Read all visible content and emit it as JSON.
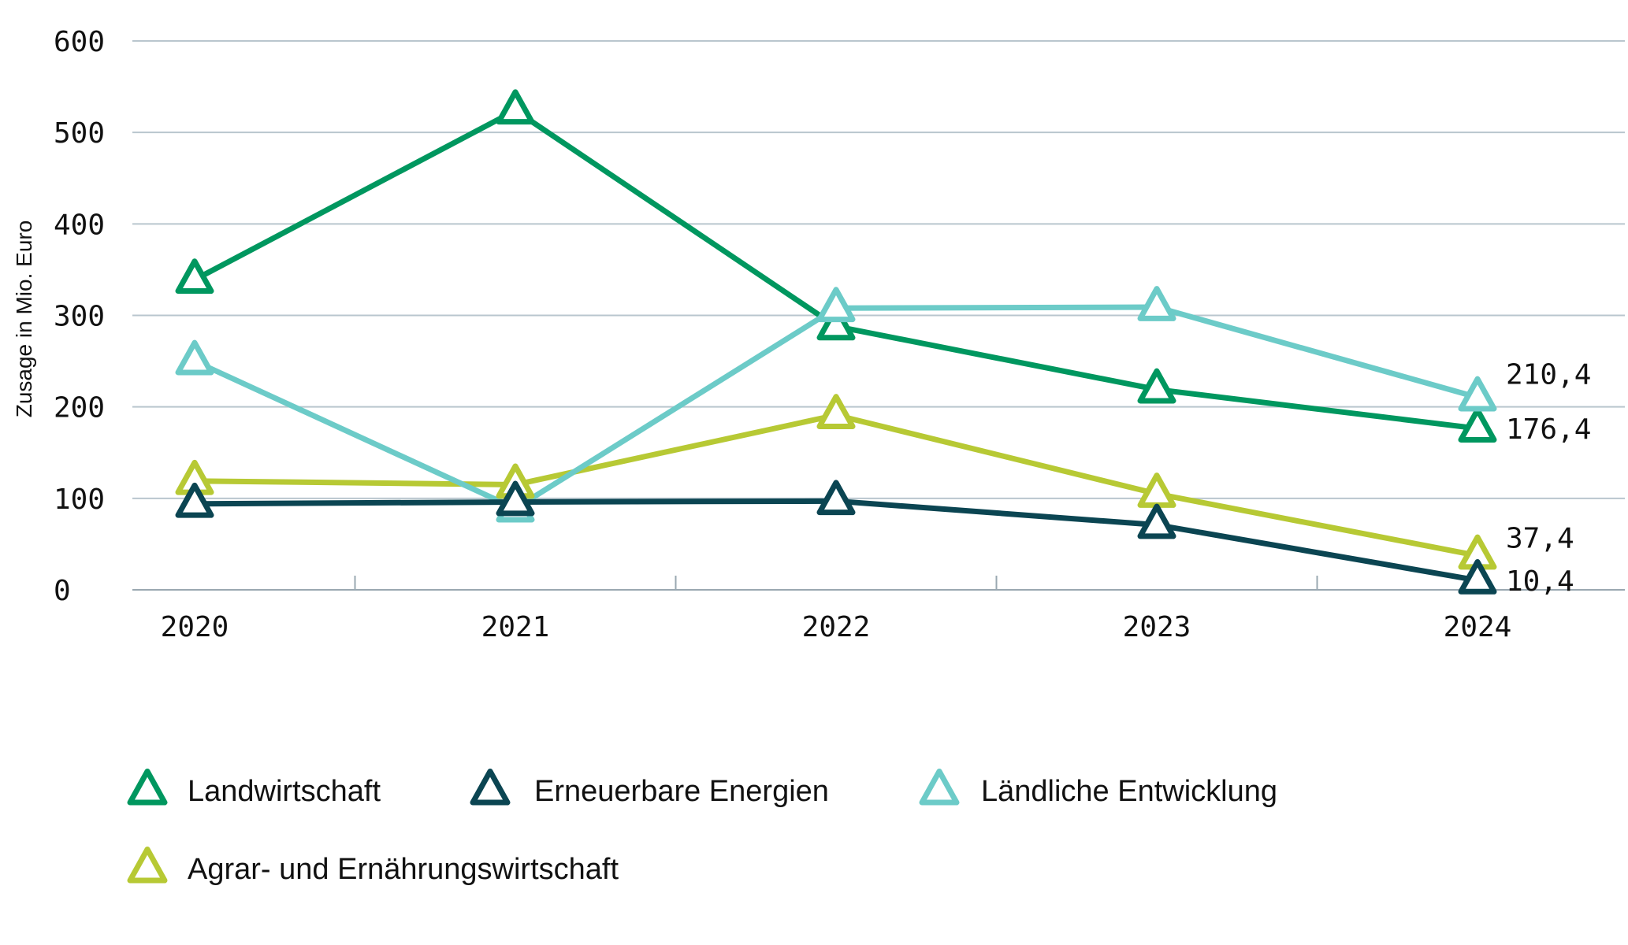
{
  "chart_data": {
    "type": "line",
    "ylabel": "Zusage in Mio. Euro",
    "xlabel": "",
    "title": "",
    "ylim": [
      0,
      600
    ],
    "yticks": [
      0,
      100,
      200,
      300,
      400,
      500,
      600
    ],
    "categories": [
      "2020",
      "2021",
      "2022",
      "2023",
      "2024"
    ],
    "grid": true,
    "legend_position": "bottom",
    "marker": "triangle-outline",
    "series": [
      {
        "name": "Landwirtschaft",
        "color": "#00975f",
        "values": [
          339,
          524,
          288,
          219,
          176.4
        ],
        "end_label": "176,4"
      },
      {
        "name": "Erneuerbare Energien",
        "color": "#0b4552",
        "values": [
          94,
          96,
          97,
          71,
          10.4
        ],
        "end_label": "10,4"
      },
      {
        "name": "Ländliche Entwicklung",
        "color": "#6ccbc8",
        "values": [
          250,
          89,
          308,
          309,
          210.4
        ],
        "end_label": "210,4"
      },
      {
        "name": "Agrar- und Ernährungswirtschaft",
        "color": "#b7c934",
        "values": [
          119,
          115,
          191,
          105,
          37.4
        ],
        "end_label": "37,4"
      }
    ]
  }
}
